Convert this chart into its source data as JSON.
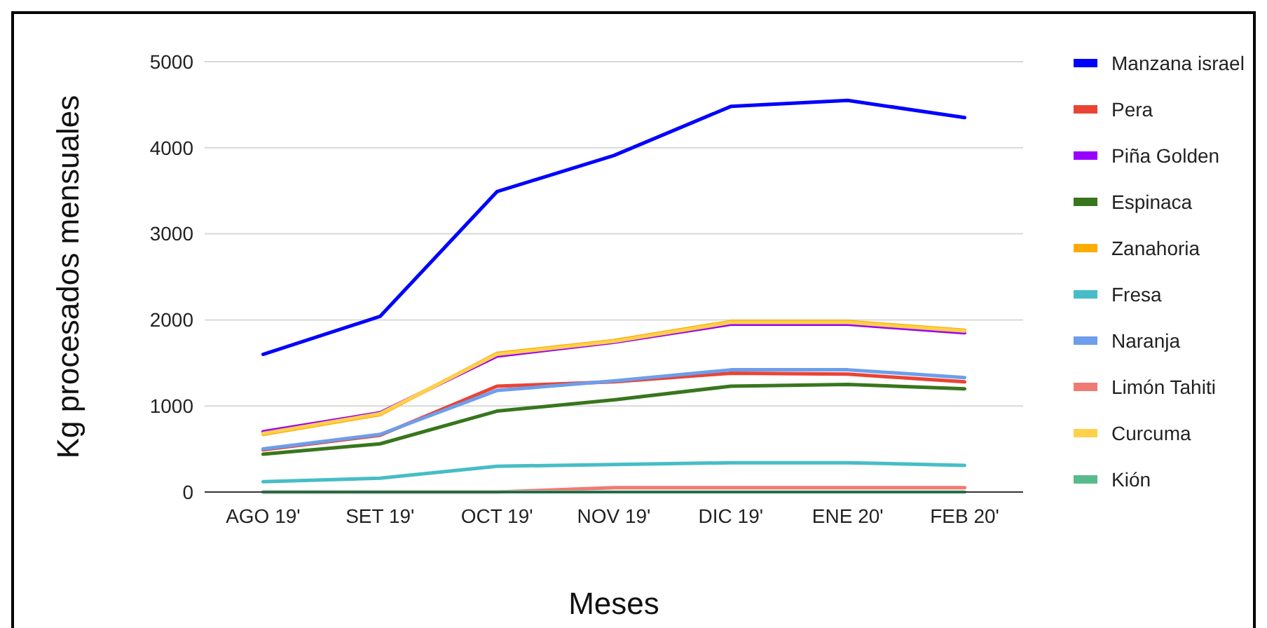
{
  "chart_data": {
    "type": "line",
    "xlabel": "Meses",
    "ylabel": "Kg procesados mensuales",
    "categories": [
      "AGO 19'",
      "SET 19'",
      "OCT 19'",
      "NOV 19'",
      "DIC 19'",
      "ENE 20'",
      "FEB 20'"
    ],
    "ylim": [
      0,
      5000
    ],
    "yticks": [
      0,
      1000,
      2000,
      3000,
      4000,
      5000
    ],
    "grid": "y",
    "legend": "right",
    "series": [
      {
        "name": "Manzana israel",
        "color": "#0000ff",
        "values": [
          1600,
          2040,
          3490,
          3910,
          4480,
          4550,
          4350
        ]
      },
      {
        "name": "Pera",
        "color": "#ea4335",
        "values": [
          490,
          660,
          1230,
          1280,
          1380,
          1370,
          1280
        ]
      },
      {
        "name": "Piña Golden",
        "color": "#9900ff",
        "values": [
          700,
          920,
          1580,
          1740,
          1950,
          1950,
          1850
        ]
      },
      {
        "name": "Espinaca",
        "color": "#38761d",
        "values": [
          440,
          560,
          940,
          1070,
          1230,
          1250,
          1200
        ]
      },
      {
        "name": "Zanahoria",
        "color": "#ffab00",
        "values": [
          670,
          900,
          1610,
          1760,
          1980,
          1980,
          1880
        ]
      },
      {
        "name": "Fresa",
        "color": "#46bdc6",
        "values": [
          120,
          160,
          300,
          320,
          340,
          340,
          310
        ]
      },
      {
        "name": "Naranja",
        "color": "#6d9eeb",
        "values": [
          500,
          670,
          1180,
          1290,
          1420,
          1420,
          1330
        ]
      },
      {
        "name": "Limón Tahiti",
        "color": "#f07b72",
        "values": [
          0,
          0,
          0,
          50,
          50,
          50,
          50
        ]
      },
      {
        "name": "Curcuma",
        "color": "#ffd04b",
        "values": [
          680,
          910,
          1600,
          1750,
          1970,
          1970,
          1870
        ]
      },
      {
        "name": "Kión",
        "color": "#57bb8a",
        "values": [
          0,
          0,
          0,
          0,
          0,
          0,
          0
        ]
      }
    ]
  }
}
